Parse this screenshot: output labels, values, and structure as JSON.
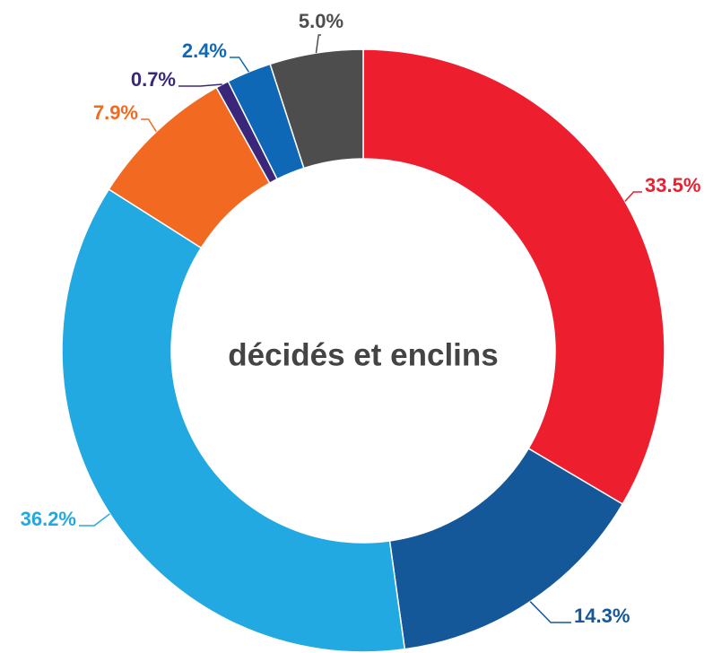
{
  "chart_data": {
    "type": "donut",
    "title": "décidés et enclins",
    "categories": [
      null,
      null,
      null,
      null,
      null,
      null,
      null
    ],
    "values": [
      33.5,
      14.3,
      36.2,
      7.9,
      0.7,
      2.4,
      5.0
    ],
    "value_labels": [
      "33.5%",
      "14.3%",
      "36.2%",
      "7.9%",
      "0.7%",
      "2.4%",
      "5.0%"
    ],
    "colors": [
      "#ed1f2f",
      "#15589a",
      "#22a9e1",
      "#f26a22",
      "#3b2779",
      "#0e68b5",
      "#4d4d4d"
    ]
  }
}
